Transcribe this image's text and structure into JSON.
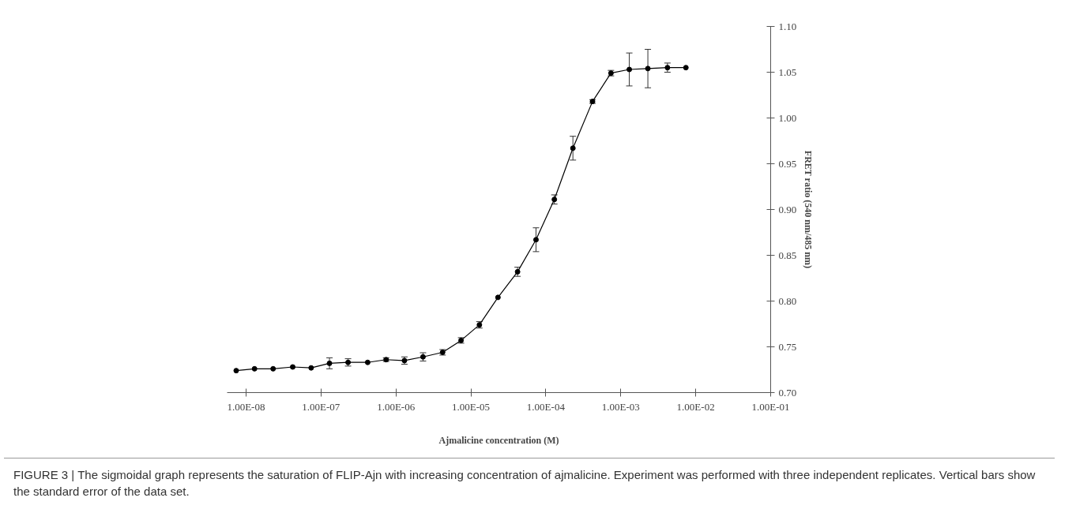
{
  "chart_data": {
    "type": "line",
    "xlabel": "Ajmalicine concentration (M)",
    "ylabel": "FRET ratio (540 nm/485 nm)",
    "log": "x",
    "marker": "circle",
    "line_style": "solid",
    "grid": false,
    "xlim": [
      5.6e-09,
      0.1
    ],
    "xticks": [
      {
        "value": 1e-08,
        "label": "1.00E-08"
      },
      {
        "value": 1e-07,
        "label": "1.00E-07"
      },
      {
        "value": 1e-06,
        "label": "1.00E-06"
      },
      {
        "value": 1e-05,
        "label": "1.00E-05"
      },
      {
        "value": 0.0001,
        "label": "1.00E-04"
      },
      {
        "value": 0.001,
        "label": "1.00E-03"
      },
      {
        "value": 0.01,
        "label": "1.00E-02"
      },
      {
        "value": 0.1,
        "label": "1.00E-01"
      }
    ],
    "ylim": [
      0.7,
      1.1
    ],
    "yticks": [
      {
        "value": 0.7,
        "label": "0.70"
      },
      {
        "value": 0.75,
        "label": "0.75"
      },
      {
        "value": 0.8,
        "label": "0.80"
      },
      {
        "value": 0.85,
        "label": "0.85"
      },
      {
        "value": 0.9,
        "label": "0.90"
      },
      {
        "value": 0.95,
        "label": "0.95"
      },
      {
        "value": 1.0,
        "label": "1.00"
      },
      {
        "value": 1.05,
        "label": "1.05"
      },
      {
        "value": 1.1,
        "label": "1.10"
      }
    ],
    "x": [
      7.4e-09,
      1.3e-08,
      2.3e-08,
      4.2e-08,
      7.4e-08,
      1.3e-07,
      2.3e-07,
      4.2e-07,
      7.4e-07,
      1.3e-06,
      2.3e-06,
      4.2e-06,
      7.4e-06,
      1.3e-05,
      2.3e-05,
      4.2e-05,
      7.4e-05,
      0.00013,
      0.00023,
      0.00042,
      0.00074,
      0.0013,
      0.0023,
      0.0042,
      0.0074
    ],
    "series": [
      {
        "color": "#000000",
        "values": [
          0.724,
          0.726,
          0.726,
          0.728,
          0.727,
          0.732,
          0.733,
          0.733,
          0.736,
          0.735,
          0.739,
          0.744,
          0.757,
          0.774,
          0.804,
          0.832,
          0.867,
          0.911,
          0.967,
          1.018,
          1.049,
          1.053,
          1.054,
          1.055,
          1.055
        ],
        "errors": [
          null,
          null,
          null,
          null,
          null,
          0.006,
          0.004,
          null,
          0.002,
          0.004,
          0.0045,
          0.003,
          0.003,
          0.0035,
          null,
          0.005,
          0.013,
          0.005,
          0.013,
          0.002,
          0.003,
          0.018,
          0.021,
          0.005,
          null
        ]
      }
    ],
    "annotations": [
      "FIGURE 3 | The sigmoidal graph represents the saturation of FLIP-Ajn with increasing concentration of ajmalicine. Experiment was performed with three independent replicates. Vertical bars show the standard error of the data set."
    ]
  }
}
